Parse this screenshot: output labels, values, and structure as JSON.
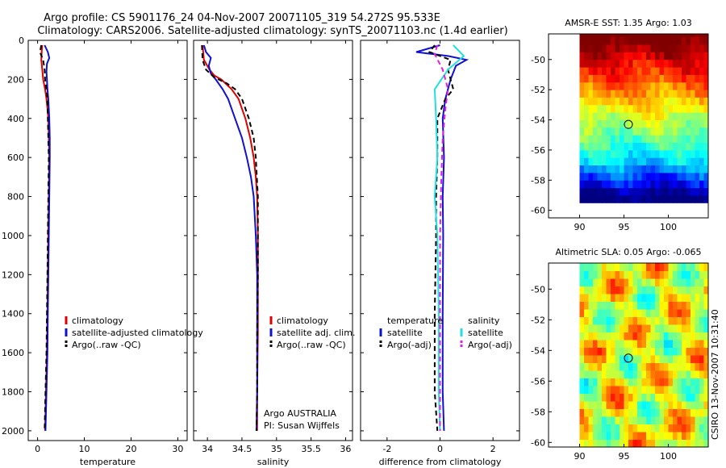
{
  "title": {
    "line1": "Argo profile: CS 5901176_24 04-Nov-2007 20071105_319 54.272S 95.533E",
    "line2": "Climatology: CARS2006. Satellite-adjusted climatology: synTS_20071103.nc (1.4d earlier)"
  },
  "credit": "CSIRO 13-Nov-2007 10:31:40",
  "colors": {
    "red": "#e00000",
    "blue": "#1010d0",
    "black": "#000000",
    "cyan": "#20e0e0",
    "magenta": "#e020e0"
  },
  "chart_data": [
    {
      "type": "line",
      "id": "temperature",
      "xlabel": "temperature",
      "xlim": [
        -2,
        32
      ],
      "ylim": [
        2050,
        0
      ],
      "xticks": [
        0,
        10,
        20,
        30
      ],
      "yticks": [
        0,
        200,
        400,
        600,
        800,
        1000,
        1200,
        1400,
        1600,
        1800,
        2000
      ],
      "legend": [
        "climatology",
        "satellite-adjusted climatology",
        "Argo(..raw -QC)"
      ],
      "series": [
        {
          "name": "climatology",
          "color": "red",
          "dash": "solid",
          "points": [
            [
              1.0,
              25
            ],
            [
              0.9,
              50
            ],
            [
              0.8,
              100
            ],
            [
              1.0,
              150
            ],
            [
              1.2,
              200
            ],
            [
              1.6,
              250
            ],
            [
              1.9,
              300
            ],
            [
              2.1,
              350
            ],
            [
              2.3,
              400
            ],
            [
              2.4,
              500
            ],
            [
              2.5,
              600
            ],
            [
              2.4,
              800
            ],
            [
              2.3,
              1000
            ],
            [
              2.2,
              1200
            ],
            [
              2.1,
              1400
            ],
            [
              2.0,
              1600
            ],
            [
              1.8,
              1800
            ],
            [
              1.6,
              2000
            ]
          ]
        },
        {
          "name": "satellite-adjusted climatology",
          "color": "blue",
          "dash": "solid",
          "points": [
            [
              1.5,
              25
            ],
            [
              2.2,
              60
            ],
            [
              2.5,
              90
            ],
            [
              2.0,
              120
            ],
            [
              1.9,
              160
            ],
            [
              2.0,
              200
            ],
            [
              2.1,
              250
            ],
            [
              2.3,
              300
            ],
            [
              2.5,
              400
            ],
            [
              2.6,
              500
            ],
            [
              2.6,
              600
            ],
            [
              2.5,
              800
            ],
            [
              2.4,
              1000
            ],
            [
              2.3,
              1200
            ],
            [
              2.2,
              1400
            ],
            [
              2.1,
              1600
            ],
            [
              1.9,
              1800
            ],
            [
              1.7,
              2000
            ]
          ]
        },
        {
          "name": "Argo(..raw -QC)",
          "color": "black",
          "dash": "dash",
          "points": [
            [
              0.8,
              25
            ],
            [
              0.5,
              60
            ],
            [
              1.2,
              100
            ],
            [
              1.5,
              150
            ],
            [
              1.6,
              200
            ],
            [
              1.9,
              250
            ],
            [
              2.1,
              300
            ],
            [
              2.2,
              400
            ],
            [
              2.3,
              500
            ],
            [
              2.4,
              600
            ],
            [
              2.3,
              800
            ],
            [
              2.2,
              1000
            ],
            [
              2.1,
              1200
            ],
            [
              2.0,
              1400
            ],
            [
              1.9,
              1600
            ],
            [
              1.7,
              1800
            ],
            [
              1.5,
              2000
            ]
          ]
        }
      ]
    },
    {
      "type": "line",
      "id": "salinity",
      "xlabel": "salinity",
      "xlim": [
        33.8,
        36.1
      ],
      "ylim": [
        2050,
        0
      ],
      "xticks": [
        34,
        34.5,
        35,
        35.5,
        36
      ],
      "legend": [
        "climatology",
        "satellite adj. clim.",
        "Argo(..raw -QC)"
      ],
      "annotation": [
        "Argo AUSTRALIA",
        "PI: Susan Wijffels"
      ],
      "series": [
        {
          "name": "climatology",
          "color": "red",
          "dash": "solid",
          "points": [
            [
              33.93,
              25
            ],
            [
              33.95,
              100
            ],
            [
              34.03,
              150
            ],
            [
              34.1,
              180
            ],
            [
              34.2,
              200
            ],
            [
              34.35,
              250
            ],
            [
              34.45,
              300
            ],
            [
              34.55,
              400
            ],
            [
              34.62,
              500
            ],
            [
              34.67,
              600
            ],
            [
              34.7,
              700
            ],
            [
              34.72,
              800
            ],
            [
              34.73,
              1000
            ],
            [
              34.73,
              1200
            ],
            [
              34.73,
              1500
            ],
            [
              34.72,
              1800
            ],
            [
              34.72,
              2000
            ]
          ]
        },
        {
          "name": "satellite adj. clim.",
          "color": "blue",
          "dash": "solid",
          "points": [
            [
              33.95,
              25
            ],
            [
              33.98,
              60
            ],
            [
              34.05,
              90
            ],
            [
              34.02,
              130
            ],
            [
              34.05,
              170
            ],
            [
              34.12,
              200
            ],
            [
              34.22,
              250
            ],
            [
              34.3,
              300
            ],
            [
              34.4,
              400
            ],
            [
              34.5,
              500
            ],
            [
              34.57,
              600
            ],
            [
              34.63,
              700
            ],
            [
              34.67,
              800
            ],
            [
              34.7,
              1000
            ],
            [
              34.72,
              1200
            ],
            [
              34.72,
              1500
            ],
            [
              34.72,
              1800
            ],
            [
              34.71,
              2000
            ]
          ]
        },
        {
          "name": "Argo(..raw -QC)",
          "color": "black",
          "dash": "dash",
          "points": [
            [
              33.92,
              25
            ],
            [
              33.93,
              100
            ],
            [
              33.98,
              150
            ],
            [
              34.1,
              190
            ],
            [
              34.28,
              220
            ],
            [
              34.4,
              250
            ],
            [
              34.5,
              300
            ],
            [
              34.6,
              400
            ],
            [
              34.67,
              500
            ],
            [
              34.7,
              600
            ],
            [
              34.73,
              800
            ],
            [
              34.73,
              1000
            ],
            [
              34.73,
              1200
            ],
            [
              34.72,
              1500
            ],
            [
              34.72,
              1800
            ],
            [
              34.71,
              2000
            ]
          ]
        }
      ]
    },
    {
      "type": "line",
      "id": "difference",
      "xlabel": "difference from climatology",
      "xlim": [
        -3,
        3
      ],
      "ylim": [
        2050,
        0
      ],
      "xticks": [
        -2,
        0,
        2
      ],
      "legend_groups": [
        {
          "header": "temperature",
          "items": [
            "satellite",
            "Argo(-adj)"
          ]
        },
        {
          "header": "salinity",
          "items": [
            "satellite",
            "Argo(-adj)"
          ]
        }
      ],
      "series": [
        {
          "name": "temperature satellite",
          "color": "blue",
          "dash": "solid",
          "points": [
            [
              0.0,
              25
            ],
            [
              -0.9,
              60
            ],
            [
              0.3,
              80
            ],
            [
              1.0,
              100
            ],
            [
              0.6,
              130
            ],
            [
              0.4,
              200
            ],
            [
              0.2,
              300
            ],
            [
              0.1,
              400
            ],
            [
              0.15,
              600
            ],
            [
              0.1,
              800
            ],
            [
              0.12,
              1000
            ],
            [
              0.1,
              1400
            ],
            [
              0.1,
              1800
            ],
            [
              0.15,
              2000
            ]
          ]
        },
        {
          "name": "temperature Argo(-adj)",
          "color": "black",
          "dash": "dash",
          "points": [
            [
              -0.2,
              25
            ],
            [
              -0.4,
              60
            ],
            [
              0.4,
              100
            ],
            [
              0.3,
              150
            ],
            [
              0.4,
              200
            ],
            [
              0.5,
              250
            ],
            [
              0.2,
              300
            ],
            [
              -0.1,
              400
            ],
            [
              -0.1,
              600
            ],
            [
              -0.15,
              800
            ],
            [
              -0.15,
              1000
            ],
            [
              -0.2,
              1400
            ],
            [
              -0.2,
              1800
            ],
            [
              -0.1,
              2000
            ]
          ]
        },
        {
          "name": "salinity satellite",
          "color": "cyan",
          "dash": "solid",
          "points": [
            [
              0.5,
              25
            ],
            [
              0.9,
              80
            ],
            [
              0.3,
              150
            ],
            [
              -0.2,
              250
            ],
            [
              -0.15,
              400
            ],
            [
              -0.1,
              600
            ],
            [
              -0.2,
              800
            ],
            [
              -0.1,
              1000
            ],
            [
              -0.05,
              1400
            ],
            [
              -0.05,
              1800
            ],
            [
              0.0,
              2000
            ]
          ]
        },
        {
          "name": "salinity Argo(-adj)",
          "color": "magenta",
          "dash": "dash",
          "points": [
            [
              -0.1,
              25
            ],
            [
              -0.2,
              70
            ],
            [
              0.1,
              150
            ],
            [
              0.3,
              250
            ],
            [
              0.2,
              350
            ],
            [
              0.1,
              500
            ],
            [
              0.05,
              700
            ],
            [
              0.0,
              1000
            ],
            [
              0.0,
              1400
            ],
            [
              0.0,
              1800
            ],
            [
              0.0,
              2000
            ]
          ]
        }
      ]
    },
    {
      "type": "heatmap",
      "id": "amsre-sst",
      "title": "AMSR-E SST: 1.35 Argo: 1.03",
      "xlim": [
        86.5,
        104.5
      ],
      "ylim": [
        -60.5,
        -48.3
      ],
      "xticks": [
        90,
        95,
        100
      ],
      "yticks": [
        -50,
        -52,
        -54,
        -56,
        -58,
        -60
      ],
      "marker": [
        95.5,
        -54.3
      ],
      "colormap": "jet",
      "data_box": [
        90,
        104.5,
        -59.5,
        -48.3
      ]
    },
    {
      "type": "heatmap",
      "id": "altimetric-sla",
      "title": "Altimetric SLA: 0.05 Argo: -0.065",
      "xlim": [
        86.5,
        104.5
      ],
      "ylim": [
        -60.3,
        -48.3
      ],
      "xticks": [
        90,
        95,
        100
      ],
      "yticks": [
        -50,
        -52,
        -54,
        -56,
        -58,
        -60
      ],
      "marker": [
        95.5,
        -54.5
      ],
      "colormap": "jet",
      "data_box": [
        90,
        104.5,
        -60.3,
        -48.3
      ]
    }
  ]
}
